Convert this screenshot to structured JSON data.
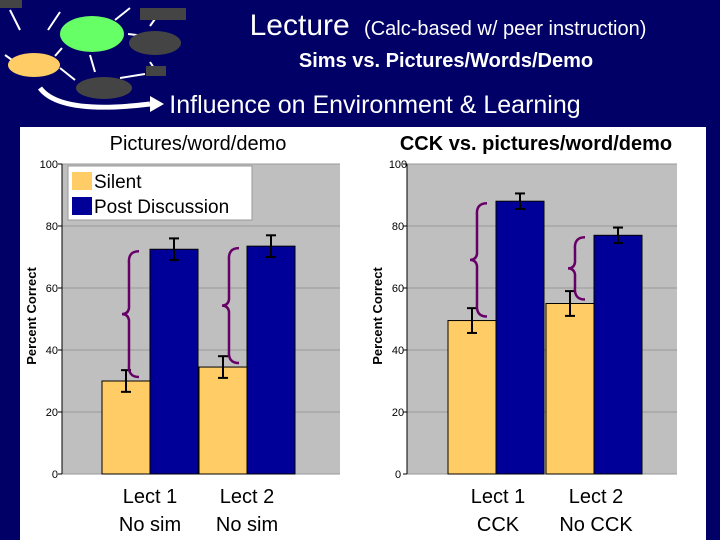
{
  "header": {
    "title_main": "Lecture",
    "title_sub": "(Calc-based w/ peer instruction)",
    "subtitle": "Sims vs. Pictures/Words/Demo",
    "section_title": "Influence on Environment & Learning"
  },
  "colors": {
    "background": "#000066",
    "silent": "#ffcc66",
    "post_discussion": "#000099",
    "plot_area": "#bfbfbf",
    "brace": "#660066",
    "diagram_green": "#66ff66",
    "diagram_yellow": "#ffcc66",
    "diagram_gray": "#444444"
  },
  "chart_data": [
    {
      "type": "bar",
      "title": "Pictures/word/demo",
      "ylabel": "Percent Correct",
      "ylim": [
        0,
        100
      ],
      "yticks": [
        "0",
        "20",
        "40",
        "60",
        "80",
        "100"
      ],
      "categories": [
        "Lect 1 No sim",
        "Lect 2 No sim"
      ],
      "category_lines": [
        [
          "Lect 1",
          "No sim"
        ],
        [
          "Lect 2",
          "No sim"
        ]
      ],
      "legend": {
        "position": "top-left",
        "entries": [
          "Silent",
          "Post Discussion"
        ]
      },
      "series": [
        {
          "name": "Silent",
          "values": [
            30,
            34.5
          ],
          "errors": [
            3.5,
            3.5
          ]
        },
        {
          "name": "Post Discussion",
          "values": [
            72.5,
            73.5
          ],
          "errors": [
            3.5,
            3.5
          ]
        }
      ]
    },
    {
      "type": "bar",
      "title": "CCK vs. pictures/word/demo",
      "ylabel": "Percent Correct",
      "ylim": [
        0,
        100
      ],
      "yticks": [
        "0",
        "20",
        "40",
        "60",
        "80",
        "100"
      ],
      "categories": [
        "Lect 1 CCK",
        "Lect 2 No CCK"
      ],
      "category_lines": [
        [
          "Lect 1",
          "CCK"
        ],
        [
          "Lect 2",
          "No CCK"
        ]
      ],
      "series": [
        {
          "name": "Silent",
          "values": [
            49.5,
            55
          ],
          "errors": [
            4,
            4
          ]
        },
        {
          "name": "Post Discussion",
          "values": [
            88,
            77
          ],
          "errors": [
            2.5,
            2.5
          ]
        }
      ]
    }
  ]
}
